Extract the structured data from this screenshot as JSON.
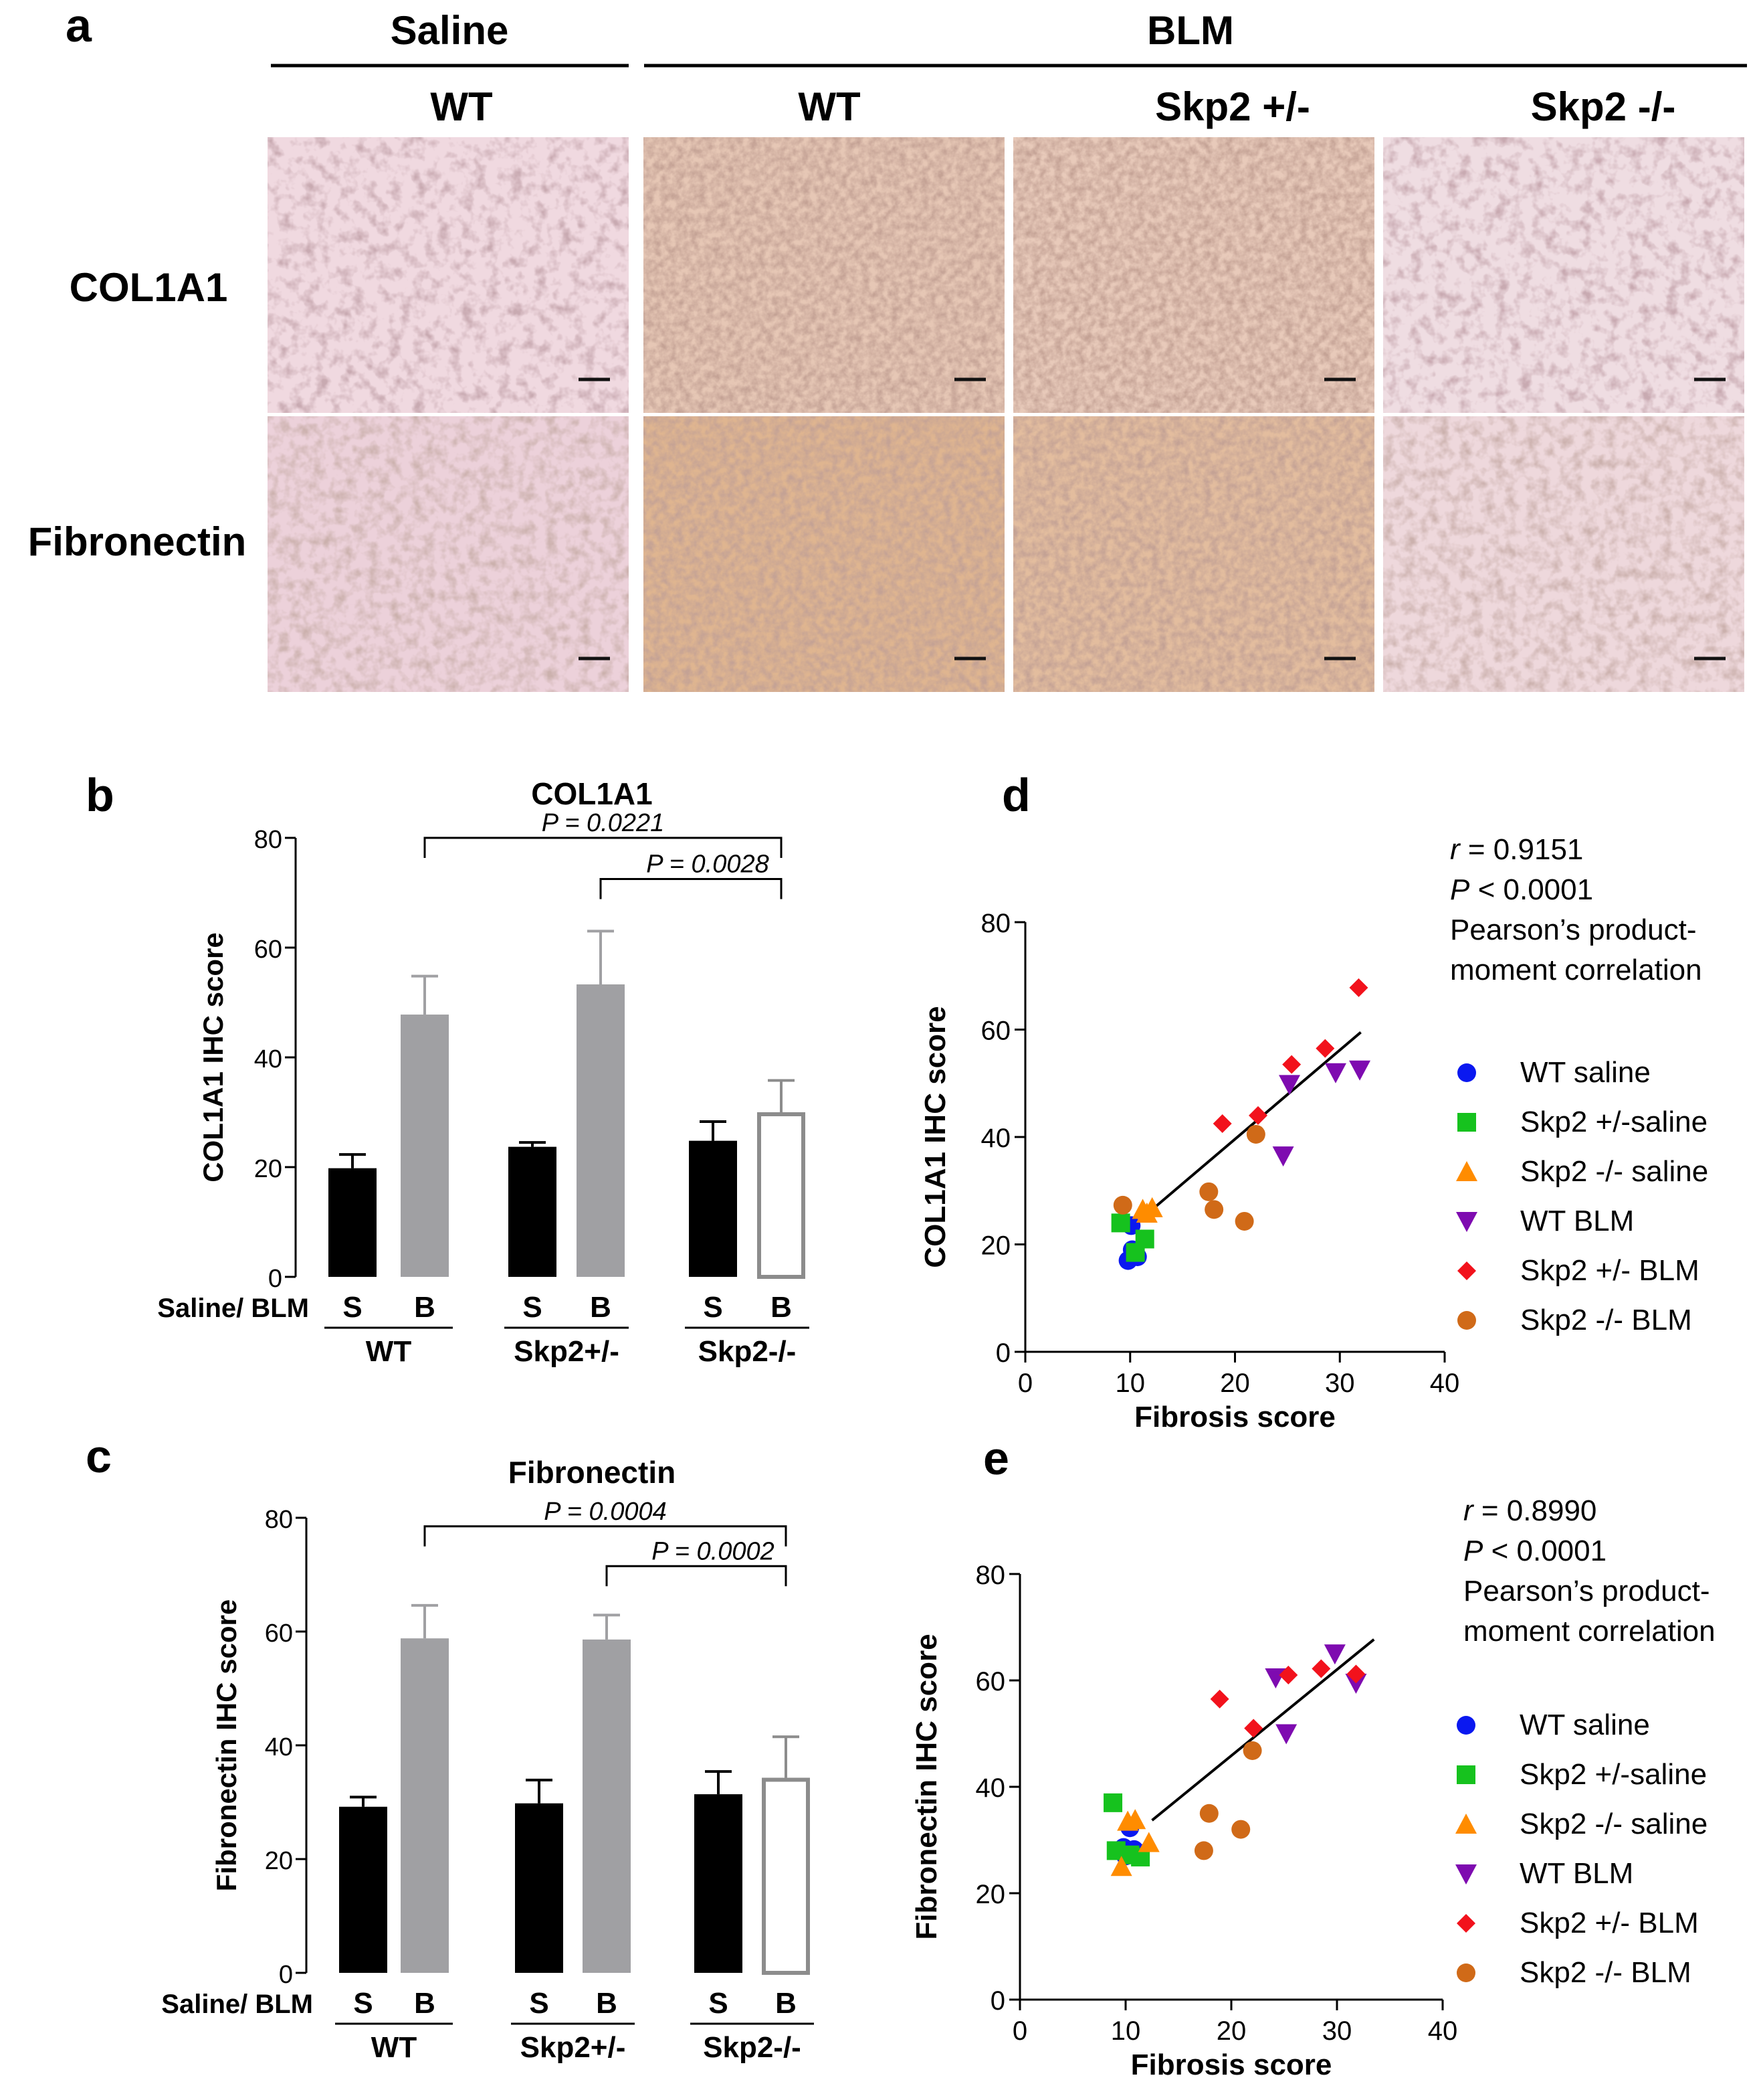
{
  "panel_a": {
    "label": "a",
    "group_saline": "Saline",
    "group_blm": "BLM",
    "columns": [
      "WT",
      "WT",
      "Skp2 +/-",
      "Skp2 -/-"
    ],
    "rows": [
      "COL1A1",
      "Fibronectin"
    ]
  },
  "chart_data": [
    {
      "id": "b",
      "panel_label": "b",
      "type": "bar",
      "title": "COL1A1",
      "ylabel": "COL1A1 IHC  score",
      "ylim": [
        0,
        80
      ],
      "yticks": [
        0,
        20,
        40,
        60,
        80
      ],
      "row_label": "Saline/ BLM",
      "categories": [
        "S",
        "B",
        "S",
        "B",
        "S",
        "B"
      ],
      "groups": [
        "WT",
        "Skp2+/-",
        "Skp2-/-"
      ],
      "values": [
        19.8,
        47.8,
        23.7,
        53.3,
        24.8,
        30.0
      ],
      "errors": [
        2.5,
        7.0,
        0.8,
        9.7,
        3.5,
        5.8
      ],
      "bar_colors": [
        "#000000",
        "#a0a0a3",
        "#000000",
        "#a0a0a3",
        "#000000",
        "#ffffff"
      ],
      "brackets": [
        {
          "from": 1,
          "to": 5,
          "label": "P = 0.0221",
          "level": 80
        },
        {
          "from": 3,
          "to": 5,
          "label": "P = 0.0028",
          "level": 72.5
        }
      ]
    },
    {
      "id": "c",
      "panel_label": "c",
      "type": "bar",
      "title": "Fibronectin",
      "ylabel": "Fibronectin IHC  score",
      "ylim": [
        0,
        80
      ],
      "yticks": [
        0,
        20,
        40,
        60,
        80
      ],
      "row_label": "Saline/ BLM",
      "categories": [
        "S",
        "B",
        "S",
        "B",
        "S",
        "B"
      ],
      "groups": [
        "WT",
        "Skp2+/-",
        "Skp2-/-"
      ],
      "values": [
        29.2,
        58.8,
        29.8,
        58.6,
        31.4,
        34.3
      ],
      "errors": [
        1.7,
        5.8,
        4.1,
        4.3,
        4.0,
        7.2
      ],
      "bar_colors": [
        "#000000",
        "#a0a0a3",
        "#000000",
        "#a0a0a3",
        "#000000",
        "#ffffff"
      ],
      "brackets": [
        {
          "from": 1,
          "to": 5,
          "label": "P = 0.0004",
          "level": 78.5
        },
        {
          "from": 3,
          "to": 5,
          "label": "P = 0.0002",
          "level": 71.5
        }
      ]
    },
    {
      "id": "d",
      "panel_label": "d",
      "type": "scatter",
      "xlabel": "Fibrosis score",
      "ylabel": "COL1A1 IHC  score",
      "xlim": [
        0,
        40
      ],
      "ylim": [
        0,
        80
      ],
      "xticks": [
        0,
        10,
        20,
        30,
        40
      ],
      "yticks": [
        0,
        20,
        40,
        60,
        80
      ],
      "stats": {
        "r": "r = 0.9151",
        "p": "P < 0.0001",
        "method1": "Pearson’s product-",
        "method2": "moment correlation"
      },
      "fit": {
        "x": [
          11.5,
          32
        ],
        "y": [
          25.5,
          59.5
        ]
      },
      "series": [
        {
          "name": "WT saline",
          "color": "#0a18f0",
          "marker": "circle",
          "points": [
            [
              9.8,
              17
            ],
            [
              10.7,
              17.7
            ],
            [
              10.2,
              19
            ],
            [
              10.1,
              23.5
            ]
          ]
        },
        {
          "name": "Skp2 +/-saline",
          "color": "#16c21e",
          "marker": "square",
          "points": [
            [
              9.1,
              24
            ],
            [
              11.4,
              21
            ],
            [
              10.5,
              18.5
            ]
          ]
        },
        {
          "name": "Skp2 -/- saline",
          "color": "#ff8c00",
          "marker": "triangle",
          "points": [
            [
              11.2,
              26.5
            ],
            [
              12.1,
              26.8
            ],
            [
              11.6,
              25.8
            ]
          ]
        },
        {
          "name": "WT BLM",
          "color": "#7e0bb0",
          "marker": "triangle-down",
          "points": [
            [
              24.6,
              36.5
            ],
            [
              25.2,
              49.8
            ],
            [
              29.6,
              52
            ],
            [
              31.9,
              52.5
            ]
          ]
        },
        {
          "name": "Skp2 +/- BLM",
          "color": "#f2121c",
          "marker": "diamond",
          "points": [
            [
              18.8,
              42.5
            ],
            [
              22.2,
              44
            ],
            [
              25.4,
              53.5
            ],
            [
              28.6,
              56.5
            ],
            [
              31.8,
              67.8
            ]
          ]
        },
        {
          "name": "Skp2 -/- BLM",
          "color": "#d06a18",
          "marker": "circle",
          "points": [
            [
              9.3,
              27.3
            ],
            [
              17.5,
              29.8
            ],
            [
              18,
              26.5
            ],
            [
              20.9,
              24.3
            ],
            [
              22,
              40.5
            ]
          ]
        }
      ]
    },
    {
      "id": "e",
      "panel_label": "e",
      "type": "scatter",
      "xlabel": "Fibrosis score",
      "ylabel": "Fibronectin IHC  score",
      "xlim": [
        0,
        40
      ],
      "ylim": [
        0,
        80
      ],
      "xticks": [
        0,
        10,
        20,
        30,
        40
      ],
      "yticks": [
        0,
        20,
        40,
        60,
        80
      ],
      "stats": {
        "r": "r = 0.8990",
        "p": "P < 0.0001",
        "method1": "Pearson’s product-",
        "method2": "moment correlation"
      },
      "fit": {
        "x": [
          12.5,
          33.5
        ],
        "y": [
          33.7,
          67.7
        ]
      },
      "series": [
        {
          "name": "WT saline",
          "color": "#0a18f0",
          "marker": "circle",
          "points": [
            [
              10.4,
              32.3
            ],
            [
              9.8,
              28.6
            ],
            [
              10.8,
              28.2
            ],
            [
              11.2,
              27.6
            ],
            [
              10.0,
              27
            ]
          ]
        },
        {
          "name": "Skp2 +/-saline",
          "color": "#16c21e",
          "marker": "square",
          "points": [
            [
              8.8,
              37
            ],
            [
              9.1,
              28
            ],
            [
              11.4,
              26.8
            ],
            [
              10.4,
              27.2
            ]
          ]
        },
        {
          "name": "Skp2 -/- saline",
          "color": "#ff8c00",
          "marker": "triangle",
          "points": [
            [
              9.6,
              25
            ],
            [
              10.2,
              33.5
            ],
            [
              12.2,
              29.5
            ],
            [
              10.9,
              33.8
            ]
          ]
        },
        {
          "name": "WT BLM",
          "color": "#7e0bb0",
          "marker": "triangle-down",
          "points": [
            [
              24.2,
              60.5
            ],
            [
              25.2,
              50
            ],
            [
              29.8,
              65
            ],
            [
              31.8,
              59.5
            ]
          ]
        },
        {
          "name": "Skp2 +/- BLM",
          "color": "#f2121c",
          "marker": "diamond",
          "points": [
            [
              18.9,
              56.5
            ],
            [
              22.1,
              51
            ],
            [
              25.4,
              61
            ],
            [
              28.5,
              62.2
            ],
            [
              31.8,
              61.2
            ]
          ]
        },
        {
          "name": "Skp2 -/- BLM",
          "color": "#d06a18",
          "marker": "circle",
          "points": [
            [
              17.4,
              28
            ],
            [
              17.9,
              35
            ],
            [
              20.9,
              32
            ],
            [
              22,
              46.8
            ]
          ]
        }
      ]
    }
  ]
}
